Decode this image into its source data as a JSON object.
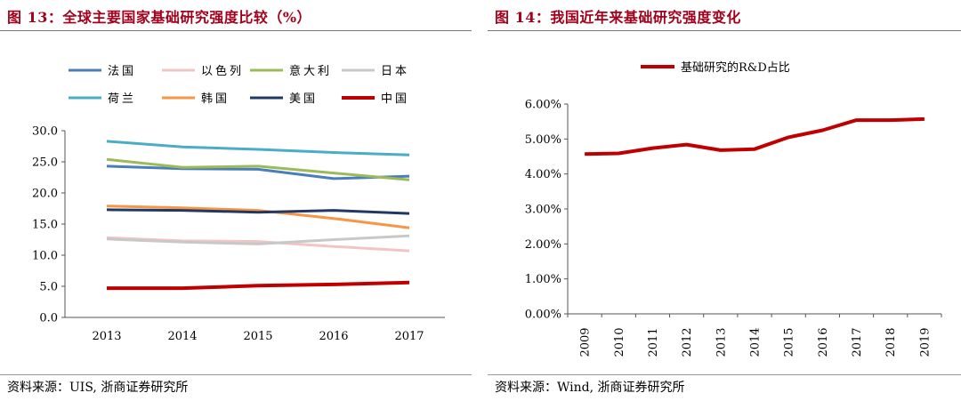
{
  "left_panel": {
    "title": "图 13：全球主要国家基础研究强度比较（%）",
    "source": "资料来源：UIS, 浙商证券研究所"
  },
  "right_panel": {
    "title": "图 14：我国近年来基础研究强度变化",
    "source": "资料来源：Wind, 浙商证券研究所"
  },
  "chart_data": [
    {
      "type": "line",
      "title": "全球主要国家基础研究强度比较（%）",
      "xlabel": "",
      "ylabel": "",
      "x": [
        "2013",
        "2014",
        "2015",
        "2016",
        "2017"
      ],
      "ylim": [
        0,
        30
      ],
      "yticks": [
        "0.0",
        "5.0",
        "10.0",
        "15.0",
        "20.0",
        "25.0",
        "30.0"
      ],
      "grid": false,
      "legend_position": "top",
      "series": [
        {
          "name": "法国",
          "color": "#4a7ebb",
          "values": [
            24.3,
            23.9,
            23.8,
            22.3,
            22.7
          ]
        },
        {
          "name": "以色列",
          "color": "#f2c4c4",
          "values": [
            12.8,
            12.3,
            12.2,
            11.4,
            10.7
          ]
        },
        {
          "name": "意大利",
          "color": "#9bbb59",
          "values": [
            25.4,
            24.1,
            24.3,
            23.2,
            22.1
          ]
        },
        {
          "name": "日本",
          "color": "#c8c8c8",
          "values": [
            12.6,
            12.1,
            11.8,
            12.5,
            13.1
          ]
        },
        {
          "name": "荷兰",
          "color": "#4bacc6",
          "values": [
            28.3,
            27.4,
            27.0,
            26.5,
            26.1
          ]
        },
        {
          "name": "韩国",
          "color": "#f79646",
          "values": [
            17.9,
            17.6,
            17.2,
            15.9,
            14.4
          ]
        },
        {
          "name": "美国",
          "color": "#1f3864",
          "values": [
            17.3,
            17.2,
            16.9,
            17.2,
            16.7
          ]
        },
        {
          "name": "中国",
          "color": "#c00000",
          "values": [
            4.7,
            4.7,
            5.1,
            5.3,
            5.6
          ]
        }
      ]
    },
    {
      "type": "line",
      "title": "我国近年来基础研究强度变化",
      "xlabel": "",
      "ylabel": "",
      "x": [
        "2009",
        "2010",
        "2011",
        "2012",
        "2013",
        "2014",
        "2015",
        "2016",
        "2017",
        "2018",
        "2019"
      ],
      "ylim": [
        0,
        6
      ],
      "yticks": [
        "0.00%",
        "1.00%",
        "2.00%",
        "3.00%",
        "4.00%",
        "5.00%",
        "6.00%"
      ],
      "grid": false,
      "legend_position": "top",
      "series": [
        {
          "name": "基础研究的R&D占比",
          "color": "#c00000",
          "values": [
            4.57,
            4.59,
            4.74,
            4.84,
            4.68,
            4.71,
            5.05,
            5.25,
            5.54,
            5.54,
            5.57
          ]
        }
      ]
    }
  ]
}
